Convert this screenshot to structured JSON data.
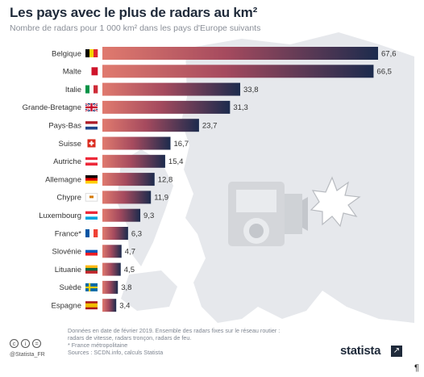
{
  "header": {
    "title": "Les pays avec le plus de radars au km²",
    "subtitle": "Nombre de radars pour 1 000 km² dans les pays d'Europe suivants"
  },
  "footer": {
    "note_lines": [
      "Données en date de février 2019. Ensemble des radars fixes sur le réseau routier :",
      "radars de vitesse, radars tronçon, radars de feu.",
      "* France métropolitaine",
      "Sources : SCDN.info, calculs Statista"
    ],
    "handle": "@Statista_FR",
    "brand": "statista",
    "brand_icon": "statista-arrow-icon",
    "cc_icons": [
      "cc-icon",
      "by-icon",
      "nd-icon"
    ],
    "trailing_mark": "¶"
  },
  "colors": {
    "bar_start": "#e07a6e",
    "bar_end": "#1c2b4d",
    "map": "#e4e6ea",
    "camera": "#d7d9dc"
  },
  "chart_data": {
    "type": "bar",
    "orientation": "horizontal",
    "categories": [
      "Belgique",
      "Malte",
      "Italie",
      "Grande-Bretagne",
      "Pays-Bas",
      "Suisse",
      "Autriche",
      "Allemagne",
      "Chypre",
      "Luxembourg",
      "France*",
      "Slovénie",
      "Lituanie",
      "Suède",
      "Espagne"
    ],
    "values": [
      67.6,
      66.5,
      33.8,
      31.3,
      23.7,
      16.7,
      15.4,
      12.8,
      11.9,
      9.3,
      6.3,
      4.7,
      4.5,
      3.8,
      3.4
    ],
    "value_labels": [
      "67,6",
      "66,5",
      "33,8",
      "31,3",
      "23,7",
      "16,7",
      "15,4",
      "12,8",
      "11,9",
      "9,3",
      "6,3",
      "4,7",
      "4,5",
      "3,8",
      "3,4"
    ],
    "flags": [
      "flag-belgium",
      "flag-malta",
      "flag-italy",
      "flag-uk",
      "flag-netherlands",
      "flag-switzerland",
      "flag-austria",
      "flag-germany",
      "flag-cyprus",
      "flag-luxembourg",
      "flag-france",
      "flag-slovenia",
      "flag-lithuania",
      "flag-sweden",
      "flag-spain"
    ],
    "xlim": [
      0,
      67.6
    ],
    "grid": false,
    "legend": "none",
    "title": "Les pays avec le plus de radars au km²",
    "subtitle": "Nombre de radars pour 1 000 km² dans les pays d'Europe suivants"
  }
}
